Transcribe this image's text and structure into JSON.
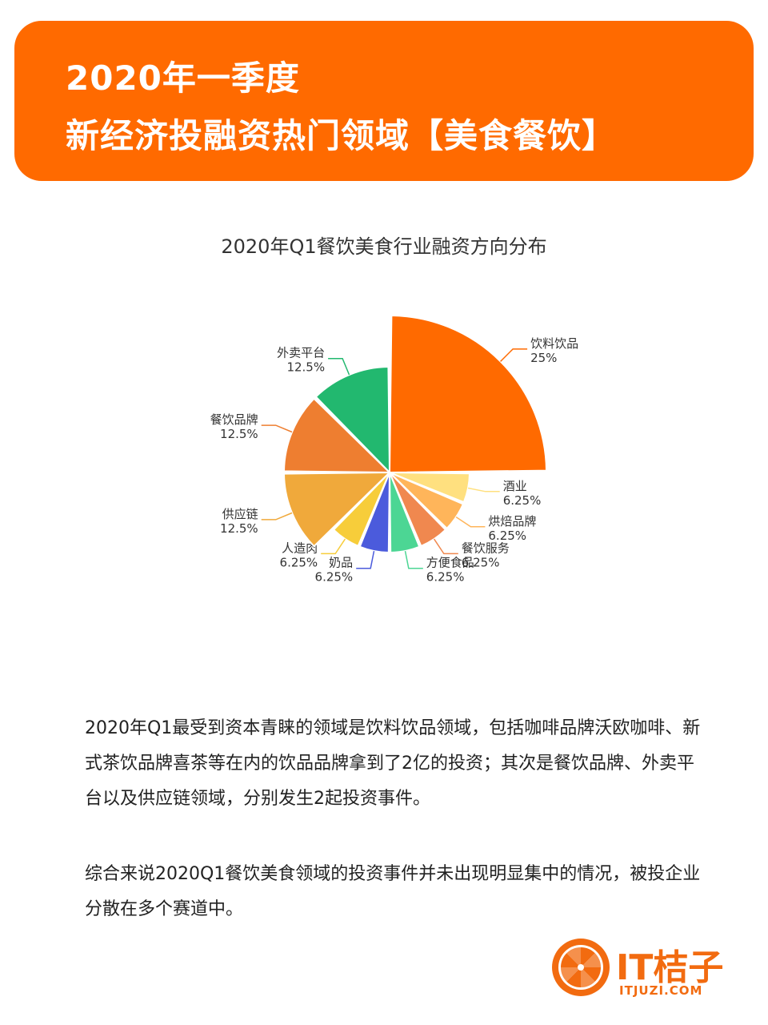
{
  "banner": {
    "line1": "2020年一季度",
    "line2": "新经济投融资热门领域【美食餐饮】",
    "color": "#ff6a00"
  },
  "chart_data": {
    "type": "pie",
    "variant": "rose",
    "title": "2020年Q1餐饮美食行业融资方向分布",
    "slices": [
      {
        "label": "饮料饮品",
        "value": 25,
        "pct": "25%",
        "color": "#ff6a00"
      },
      {
        "label": "酒业",
        "value": 6.25,
        "pct": "6.25%",
        "color": "#ffe07f"
      },
      {
        "label": "烘焙品牌",
        "value": 6.25,
        "pct": "6.25%",
        "color": "#ffb55a"
      },
      {
        "label": "餐饮服务",
        "value": 6.25,
        "pct": "6.25%",
        "color": "#f0884f"
      },
      {
        "label": "方便食品",
        "value": 6.25,
        "pct": "6.25%",
        "color": "#4cd694"
      },
      {
        "label": "奶品",
        "value": 6.25,
        "pct": "6.25%",
        "color": "#4b5bdc"
      },
      {
        "label": "人造肉",
        "value": 6.25,
        "pct": "6.25%",
        "color": "#f7cd3a"
      },
      {
        "label": "供应链",
        "value": 12.5,
        "pct": "12.5%",
        "color": "#f0a93b"
      },
      {
        "label": "餐饮品牌",
        "value": 12.5,
        "pct": "12.5%",
        "color": "#ee7e30"
      },
      {
        "label": "外卖平台",
        "value": 12.5,
        "pct": "12.5%",
        "color": "#22b86f"
      }
    ]
  },
  "text": {
    "p1": "2020年Q1最受到资本青睐的领域是饮料饮品领域，包括咖啡品牌沃欧咖啡、新式茶饮品牌喜茶等在内的饮品品牌拿到了2亿的投资；其次是餐饮品牌、外卖平台以及供应链领域，分别发生2起投资事件。",
    "p2": "综合来说2020Q1餐饮美食领域的投资事件并未出现明显集中的情况，被投企业分散在多个赛道中。"
  },
  "logo": {
    "name": "IT桔子",
    "url": "ITJUZI.COM",
    "icon": "orange-slice-icon",
    "color": "#f26b10"
  }
}
